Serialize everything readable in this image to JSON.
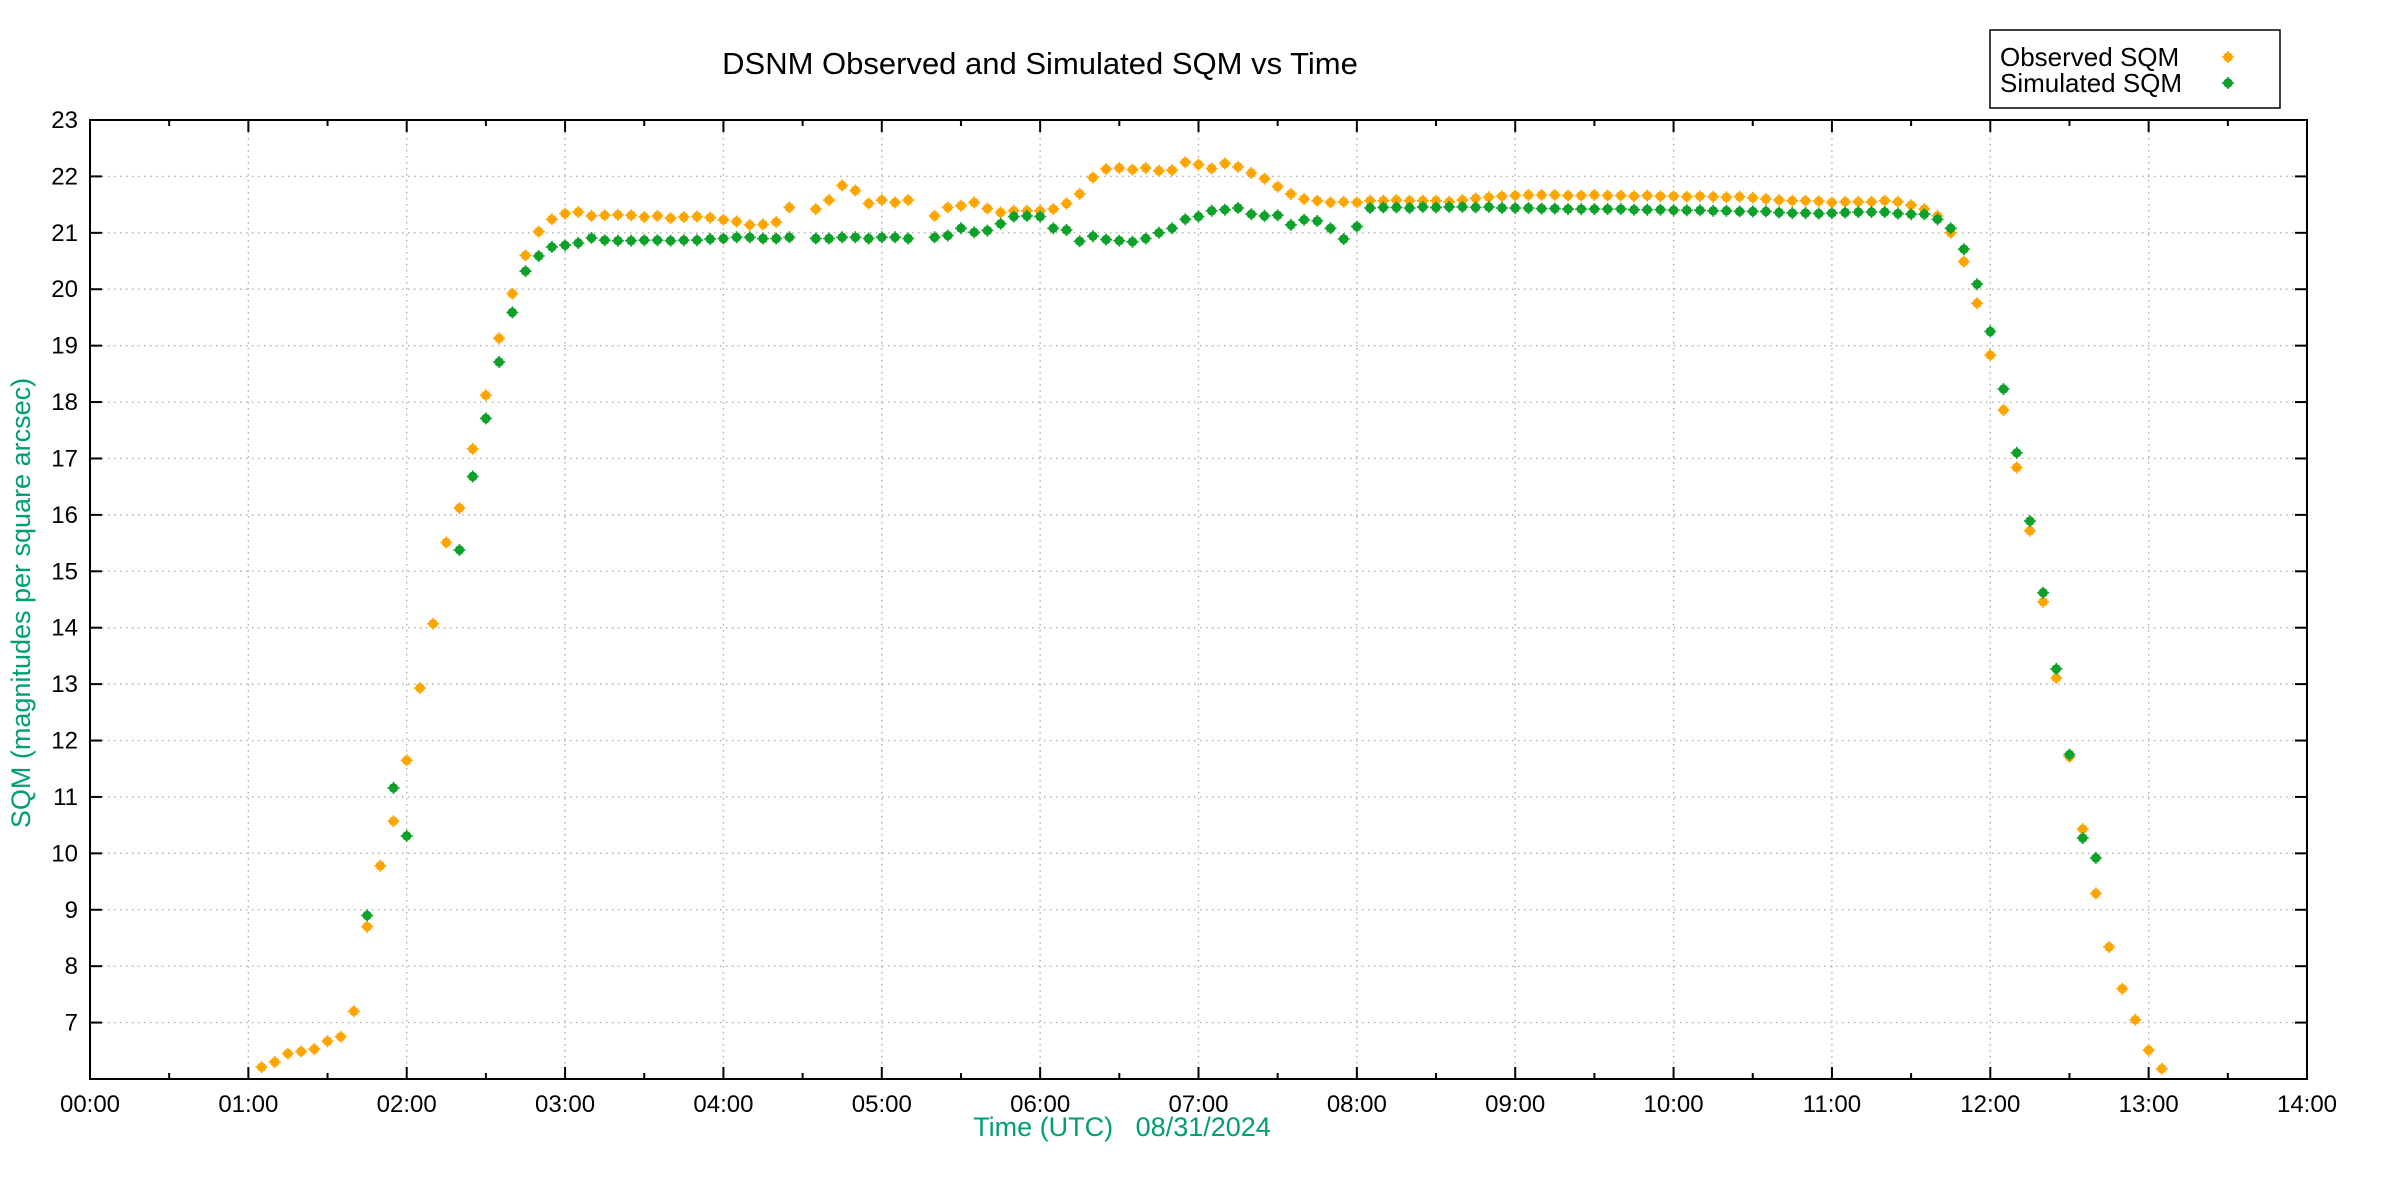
{
  "chart_data": {
    "type": "scatter",
    "title": "DSNM Observed and Simulated SQM vs Time",
    "xlabel": "Time (UTC)   08/31/2024",
    "ylabel": "SQM (magnitudes per square arcsec)",
    "xlim_hours": [
      0,
      14
    ],
    "ylim": [
      6,
      23
    ],
    "grid": true,
    "legend_position": "top-right-outside",
    "x_tick_labels": [
      "00:00",
      "01:00",
      "02:00",
      "03:00",
      "04:00",
      "05:00",
      "06:00",
      "07:00",
      "08:00",
      "09:00",
      "10:00",
      "11:00",
      "12:00",
      "13:00",
      "14:00"
    ],
    "y_tick_values": [
      7,
      8,
      9,
      10,
      11,
      12,
      13,
      14,
      15,
      16,
      17,
      18,
      19,
      20,
      21,
      22,
      23
    ],
    "marker_colors": {
      "observed": "#ffa500",
      "simulated": "#0ca129"
    },
    "series": [
      {
        "name": "Observed SQM",
        "color": "#ffa500",
        "points": [
          [
            "01:05",
            6.21
          ],
          [
            "01:10",
            6.3
          ],
          [
            "01:15",
            6.45
          ],
          [
            "01:20",
            6.49
          ],
          [
            "01:25",
            6.53
          ],
          [
            "01:30",
            6.67
          ],
          [
            "01:35",
            6.75
          ],
          [
            "01:40",
            7.2
          ],
          [
            "01:45",
            8.7
          ],
          [
            "01:50",
            9.78
          ],
          [
            "01:55",
            10.57
          ],
          [
            "02:00",
            11.65
          ],
          [
            "02:05",
            12.93
          ],
          [
            "02:10",
            14.07
          ],
          [
            "02:15",
            15.51
          ],
          [
            "02:20",
            16.12
          ],
          [
            "02:25",
            17.17
          ],
          [
            "02:30",
            18.12
          ],
          [
            "02:35",
            19.13
          ],
          [
            "02:40",
            19.92
          ],
          [
            "02:45",
            20.6
          ],
          [
            "02:50",
            21.02
          ],
          [
            "02:55",
            21.24
          ],
          [
            "03:00",
            21.34
          ],
          [
            "03:05",
            21.37
          ],
          [
            "03:10",
            21.3
          ],
          [
            "03:15",
            21.31
          ],
          [
            "03:20",
            21.32
          ],
          [
            "03:25",
            21.31
          ],
          [
            "03:30",
            21.28
          ],
          [
            "03:35",
            21.3
          ],
          [
            "03:40",
            21.26
          ],
          [
            "03:45",
            21.28
          ],
          [
            "03:50",
            21.29
          ],
          [
            "03:55",
            21.27
          ],
          [
            "04:00",
            21.23
          ],
          [
            "04:05",
            21.2
          ],
          [
            "04:10",
            21.14
          ],
          [
            "04:15",
            21.15
          ],
          [
            "04:20",
            21.19
          ],
          [
            "04:25",
            21.45
          ],
          [
            "04:35",
            21.42
          ],
          [
            "04:40",
            21.58
          ],
          [
            "04:45",
            21.84
          ],
          [
            "04:50",
            21.75
          ],
          [
            "04:55",
            21.52
          ],
          [
            "05:00",
            21.58
          ],
          [
            "05:05",
            21.54
          ],
          [
            "05:10",
            21.58
          ],
          [
            "05:20",
            21.3
          ],
          [
            "05:25",
            21.45
          ],
          [
            "05:30",
            21.48
          ],
          [
            "05:35",
            21.54
          ],
          [
            "05:40",
            21.43
          ],
          [
            "05:45",
            21.36
          ],
          [
            "05:50",
            21.39
          ],
          [
            "05:55",
            21.39
          ],
          [
            "06:00",
            21.39
          ],
          [
            "06:05",
            21.42
          ],
          [
            "06:10",
            21.52
          ],
          [
            "06:15",
            21.69
          ],
          [
            "06:20",
            21.98
          ],
          [
            "06:25",
            22.13
          ],
          [
            "06:30",
            22.15
          ],
          [
            "06:35",
            22.12
          ],
          [
            "06:40",
            22.15
          ],
          [
            "06:45",
            22.1
          ],
          [
            "06:50",
            22.11
          ],
          [
            "06:55",
            22.25
          ],
          [
            "07:00",
            22.21
          ],
          [
            "07:05",
            22.14
          ],
          [
            "07:10",
            22.23
          ],
          [
            "07:15",
            22.17
          ],
          [
            "07:20",
            22.06
          ],
          [
            "07:25",
            21.96
          ],
          [
            "07:30",
            21.82
          ],
          [
            "07:35",
            21.69
          ],
          [
            "07:40",
            21.6
          ],
          [
            "07:45",
            21.57
          ],
          [
            "07:50",
            21.54
          ],
          [
            "07:55",
            21.55
          ],
          [
            "08:00",
            21.54
          ],
          [
            "08:05",
            21.57
          ],
          [
            "08:10",
            21.57
          ],
          [
            "08:15",
            21.58
          ],
          [
            "08:20",
            21.57
          ],
          [
            "08:25",
            21.57
          ],
          [
            "08:30",
            21.57
          ],
          [
            "08:35",
            21.55
          ],
          [
            "08:40",
            21.58
          ],
          [
            "08:45",
            21.61
          ],
          [
            "08:50",
            21.63
          ],
          [
            "08:55",
            21.65
          ],
          [
            "09:00",
            21.66
          ],
          [
            "09:05",
            21.67
          ],
          [
            "09:10",
            21.67
          ],
          [
            "09:15",
            21.67
          ],
          [
            "09:20",
            21.66
          ],
          [
            "09:25",
            21.66
          ],
          [
            "09:30",
            21.67
          ],
          [
            "09:35",
            21.66
          ],
          [
            "09:40",
            21.66
          ],
          [
            "09:45",
            21.65
          ],
          [
            "09:50",
            21.66
          ],
          [
            "09:55",
            21.65
          ],
          [
            "10:00",
            21.65
          ],
          [
            "10:05",
            21.64
          ],
          [
            "10:10",
            21.65
          ],
          [
            "10:15",
            21.64
          ],
          [
            "10:20",
            21.63
          ],
          [
            "10:25",
            21.64
          ],
          [
            "10:30",
            21.62
          ],
          [
            "10:35",
            21.6
          ],
          [
            "10:40",
            21.58
          ],
          [
            "10:45",
            21.57
          ],
          [
            "10:50",
            21.57
          ],
          [
            "10:55",
            21.56
          ],
          [
            "11:00",
            21.54
          ],
          [
            "11:05",
            21.55
          ],
          [
            "11:10",
            21.55
          ],
          [
            "11:15",
            21.55
          ],
          [
            "11:20",
            21.57
          ],
          [
            "11:25",
            21.55
          ],
          [
            "11:30",
            21.49
          ],
          [
            "11:35",
            21.42
          ],
          [
            "11:40",
            21.3
          ],
          [
            "11:45",
            21.0
          ],
          [
            "11:50",
            20.49
          ],
          [
            "11:55",
            19.75
          ],
          [
            "12:00",
            18.83
          ],
          [
            "12:05",
            17.86
          ],
          [
            "12:10",
            16.84
          ],
          [
            "12:15",
            15.72
          ],
          [
            "12:20",
            14.46
          ],
          [
            "12:25",
            13.11
          ],
          [
            "12:30",
            11.71
          ],
          [
            "12:35",
            10.43
          ],
          [
            "12:40",
            9.29
          ],
          [
            "12:45",
            8.34
          ],
          [
            "12:50",
            7.6
          ],
          [
            "12:55",
            7.05
          ],
          [
            "13:00",
            6.51
          ],
          [
            "13:05",
            6.18
          ]
        ]
      },
      {
        "name": "Simulated SQM",
        "color": "#0ca129",
        "points": [
          [
            "01:45",
            8.9
          ],
          [
            "01:55",
            11.16
          ],
          [
            "02:00",
            10.31
          ],
          [
            "02:20",
            15.38
          ],
          [
            "02:25",
            16.68
          ],
          [
            "02:30",
            17.71
          ],
          [
            "02:35",
            18.71
          ],
          [
            "02:40",
            19.59
          ],
          [
            "02:45",
            20.32
          ],
          [
            "02:50",
            20.59
          ],
          [
            "02:55",
            20.75
          ],
          [
            "03:00",
            20.78
          ],
          [
            "03:05",
            20.82
          ],
          [
            "03:10",
            20.91
          ],
          [
            "03:15",
            20.87
          ],
          [
            "03:20",
            20.86
          ],
          [
            "03:25",
            20.86
          ],
          [
            "03:30",
            20.87
          ],
          [
            "03:35",
            20.87
          ],
          [
            "03:40",
            20.86
          ],
          [
            "03:45",
            20.87
          ],
          [
            "03:50",
            20.87
          ],
          [
            "03:55",
            20.89
          ],
          [
            "04:00",
            20.9
          ],
          [
            "04:05",
            20.92
          ],
          [
            "04:10",
            20.92
          ],
          [
            "04:15",
            20.9
          ],
          [
            "04:20",
            20.9
          ],
          [
            "04:25",
            20.92
          ],
          [
            "04:35",
            20.9
          ],
          [
            "04:40",
            20.9
          ],
          [
            "04:45",
            20.92
          ],
          [
            "04:50",
            20.92
          ],
          [
            "04:55",
            20.9
          ],
          [
            "05:00",
            20.92
          ],
          [
            "05:05",
            20.92
          ],
          [
            "05:10",
            20.9
          ],
          [
            "05:20",
            20.92
          ],
          [
            "05:25",
            20.95
          ],
          [
            "05:30",
            21.08
          ],
          [
            "05:35",
            21.01
          ],
          [
            "05:40",
            21.04
          ],
          [
            "05:45",
            21.16
          ],
          [
            "05:50",
            21.29
          ],
          [
            "05:55",
            21.3
          ],
          [
            "06:00",
            21.29
          ],
          [
            "06:05",
            21.08
          ],
          [
            "06:10",
            21.05
          ],
          [
            "06:15",
            20.85
          ],
          [
            "06:20",
            20.94
          ],
          [
            "06:25",
            20.88
          ],
          [
            "06:30",
            20.86
          ],
          [
            "06:35",
            20.84
          ],
          [
            "06:40",
            20.9
          ],
          [
            "06:45",
            21.0
          ],
          [
            "06:50",
            21.08
          ],
          [
            "06:55",
            21.24
          ],
          [
            "07:00",
            21.29
          ],
          [
            "07:05",
            21.39
          ],
          [
            "07:10",
            21.41
          ],
          [
            "07:15",
            21.44
          ],
          [
            "07:20",
            21.33
          ],
          [
            "07:25",
            21.3
          ],
          [
            "07:30",
            21.31
          ],
          [
            "07:35",
            21.14
          ],
          [
            "07:40",
            21.23
          ],
          [
            "07:45",
            21.21
          ],
          [
            "07:50",
            21.08
          ],
          [
            "07:55",
            20.89
          ],
          [
            "08:00",
            21.11
          ],
          [
            "08:05",
            21.44
          ],
          [
            "08:10",
            21.45
          ],
          [
            "08:15",
            21.45
          ],
          [
            "08:20",
            21.44
          ],
          [
            "08:25",
            21.46
          ],
          [
            "08:30",
            21.45
          ],
          [
            "08:35",
            21.46
          ],
          [
            "08:40",
            21.46
          ],
          [
            "08:45",
            21.45
          ],
          [
            "08:50",
            21.46
          ],
          [
            "08:55",
            21.44
          ],
          [
            "09:00",
            21.44
          ],
          [
            "09:05",
            21.44
          ],
          [
            "09:10",
            21.43
          ],
          [
            "09:15",
            21.43
          ],
          [
            "09:20",
            21.42
          ],
          [
            "09:25",
            21.42
          ],
          [
            "09:30",
            21.42
          ],
          [
            "09:35",
            21.42
          ],
          [
            "09:40",
            21.42
          ],
          [
            "09:45",
            21.41
          ],
          [
            "09:50",
            21.41
          ],
          [
            "09:55",
            21.41
          ],
          [
            "10:00",
            21.4
          ],
          [
            "10:05",
            21.4
          ],
          [
            "10:10",
            21.4
          ],
          [
            "10:15",
            21.39
          ],
          [
            "10:20",
            21.39
          ],
          [
            "10:25",
            21.38
          ],
          [
            "10:30",
            21.38
          ],
          [
            "10:35",
            21.38
          ],
          [
            "10:40",
            21.36
          ],
          [
            "10:45",
            21.35
          ],
          [
            "10:50",
            21.35
          ],
          [
            "10:55",
            21.34
          ],
          [
            "11:00",
            21.35
          ],
          [
            "11:05",
            21.36
          ],
          [
            "11:10",
            21.37
          ],
          [
            "11:15",
            21.37
          ],
          [
            "11:20",
            21.37
          ],
          [
            "11:25",
            21.34
          ],
          [
            "11:30",
            21.33
          ],
          [
            "11:35",
            21.33
          ],
          [
            "11:40",
            21.24
          ],
          [
            "11:45",
            21.08
          ],
          [
            "11:50",
            20.71
          ],
          [
            "11:55",
            20.09
          ],
          [
            "12:00",
            19.25
          ],
          [
            "12:05",
            18.23
          ],
          [
            "12:10",
            17.1
          ],
          [
            "12:15",
            15.89
          ],
          [
            "12:20",
            14.62
          ],
          [
            "12:25",
            13.27
          ],
          [
            "12:30",
            11.75
          ],
          [
            "12:35",
            10.27
          ],
          [
            "12:40",
            9.92
          ]
        ]
      }
    ]
  }
}
